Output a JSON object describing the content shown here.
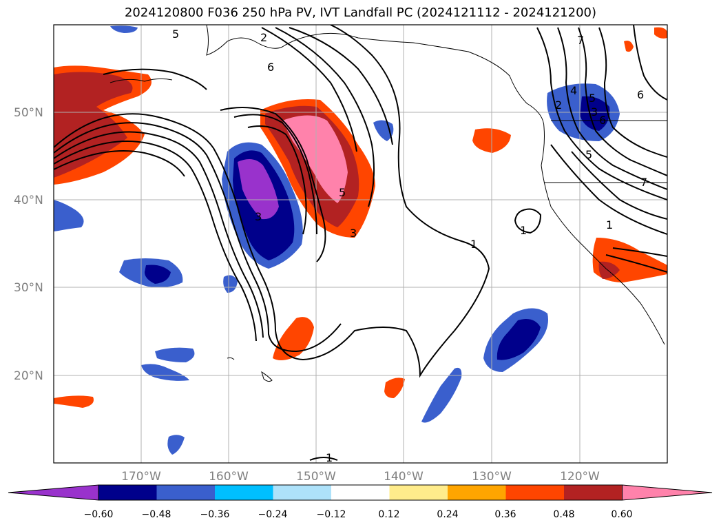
{
  "title": "2024120800 F036 250 hPa PV, IVT Landfall PC (2024121112 - 2024121200)",
  "map": {
    "lat_labels": [
      "50°N",
      "40°N",
      "30°N",
      "20°N"
    ],
    "lon_labels": [
      "170°W",
      "160°W",
      "150°W",
      "140°W",
      "130°W",
      "120°W"
    ],
    "gridlines": true,
    "contour_labels": [
      "5",
      "6",
      "3",
      "2",
      "4",
      "5",
      "6",
      "7",
      "5",
      "3",
      "1",
      "1",
      "2",
      "3",
      "5",
      "6",
      "7",
      "1",
      "1"
    ]
  },
  "colorbar": {
    "tick_labels": [
      "−0.60",
      "−0.48",
      "−0.36",
      "−0.24",
      "−0.12",
      "0.12",
      "0.24",
      "0.36",
      "0.48",
      "0.60"
    ],
    "colors": [
      "#9932CC",
      "#00008B",
      "#3A5FCD",
      "#00BFFF",
      "#AEE2FA",
      "#FFFFFF",
      "#FFEC8B",
      "#FFA500",
      "#FF4500",
      "#B22222",
      "#FF82AB"
    ],
    "extend": "both"
  }
}
